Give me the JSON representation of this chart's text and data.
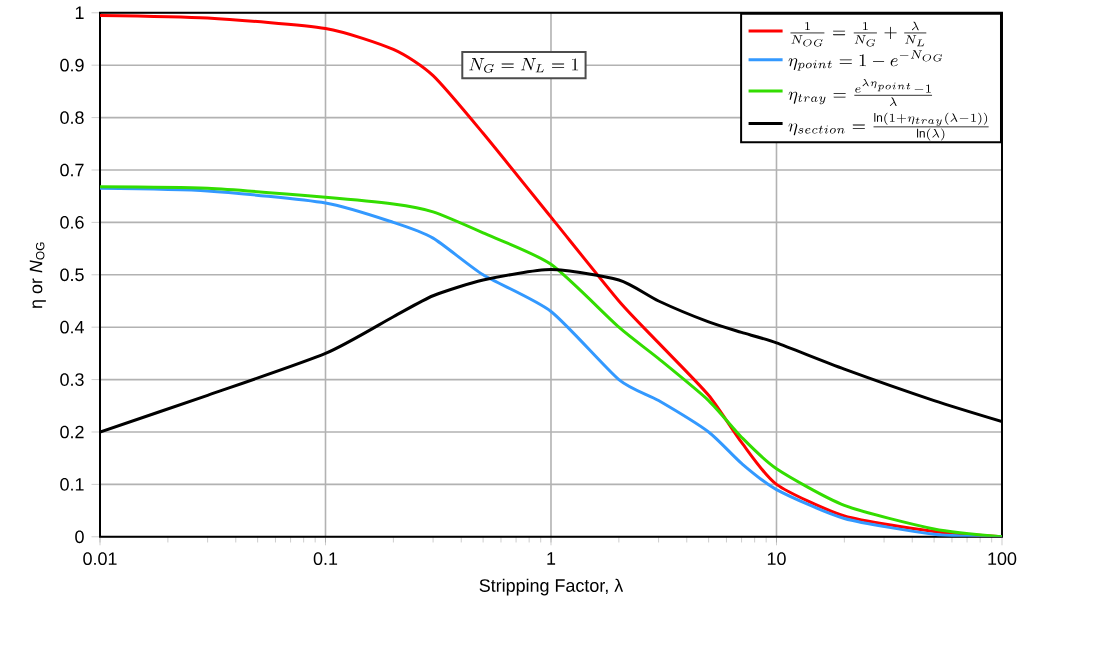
{
  "chart_data": {
    "type": "line",
    "xlabel": "Stripping Factor, λ",
    "ylabel": "η or *N*$_{OG}$",
    "annotations": [
      "N_G = N_L = 1"
    ],
    "x": [
      0.01,
      0.03,
      0.1,
      0.2,
      0.3,
      0.5,
      1,
      2,
      3,
      5,
      7,
      10,
      20,
      50,
      100
    ],
    "series": [
      {
        "name": "\\frac{1}{N_{OG}}=\\frac{1}{N_G}+\\frac{\\lambda}{N_L}",
        "color": "#ff0000",
        "values": [
          0.995,
          0.99,
          0.97,
          0.93,
          0.88,
          0.77,
          0.61,
          0.45,
          0.37,
          0.27,
          0.18,
          0.1,
          0.04,
          0.01,
          0
        ]
      },
      {
        "name": "\\eta_{point}=1-e^{-N_{OG}}",
        "color": "#3399ff",
        "values": [
          0.665,
          0.66,
          0.637,
          0.6,
          0.57,
          0.5,
          0.43,
          0.3,
          0.26,
          0.2,
          0.14,
          0.09,
          0.035,
          0.005,
          0
        ]
      },
      {
        "name": "\\eta_{tray}=\\frac{e^{\\lambda\\eta_{point}}-1}{\\lambda}",
        "color": "#33dd00",
        "values": [
          0.668,
          0.665,
          0.648,
          0.635,
          0.62,
          0.58,
          0.52,
          0.4,
          0.34,
          0.26,
          0.19,
          0.13,
          0.06,
          0.015,
          0
        ]
      },
      {
        "name": "\\eta_{section}=\\frac{\\ln(1+\\eta_{tray}(\\lambda-1))}{\\ln(\\lambda)}",
        "color": "#000000",
        "values": [
          0.2,
          0.27,
          0.35,
          0.42,
          0.46,
          0.49,
          0.51,
          0.49,
          0.45,
          0.41,
          0.39,
          0.37,
          0.32,
          0.26,
          0.22
        ]
      }
    ],
    "log": "x",
    "xlim": [
      0.01,
      100
    ],
    "ylim": [
      0,
      1
    ],
    "xticks": [
      0.01,
      0.1,
      1,
      10,
      100
    ],
    "yticks": [
      0,
      0.1,
      0.2,
      0.3,
      0.4,
      0.5,
      0.6,
      0.7,
      0.8,
      0.9,
      1
    ],
    "grid": true,
    "legend": "top right",
    "line_style": "solid",
    "marker": "none"
  }
}
